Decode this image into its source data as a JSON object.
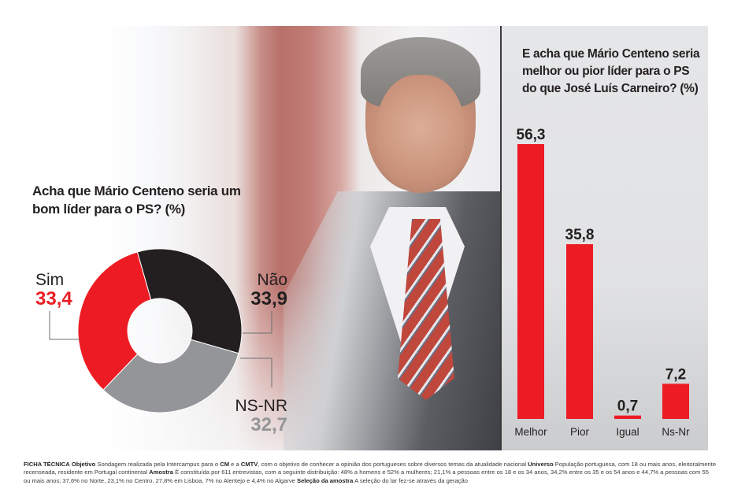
{
  "colors": {
    "red": "#ed1c24",
    "black": "#231f20",
    "gray": "#939598",
    "panel_bg": "#e3e4e6"
  },
  "chart_data": [
    {
      "type": "pie",
      "variant": "donut",
      "title": "Acha que Mário Centeno seria um bom líder para o PS? (%)",
      "categories": [
        "Não",
        "NS-NR",
        "Sim"
      ],
      "values": [
        33.9,
        32.7,
        33.4
      ],
      "value_labels": [
        "33,9",
        "32,7",
        "33,4"
      ],
      "colors": [
        "#231f20",
        "#939598",
        "#ed1c24"
      ],
      "legend": "none",
      "labels_placement": "outside-with-leader-lines"
    },
    {
      "type": "bar",
      "title": "E acha que Mário Centeno seria melhor ou pior líder para o PS do que José Luís Carneiro? (%)",
      "categories": [
        "Melhor",
        "Pior",
        "Igual",
        "Ns-Nr"
      ],
      "values": [
        56.3,
        35.8,
        0.7,
        7.2
      ],
      "value_labels": [
        "56,3",
        "35,8",
        "0,7",
        "7,2"
      ],
      "color": "#ed1c24",
      "xlabel": "",
      "ylabel": "",
      "ylim": [
        0,
        56.3
      ],
      "grid": false
    }
  ],
  "donut": {
    "title": "Acha que Mário Centeno seria um bom líder para o PS? (%)",
    "sim": {
      "name": "Sim",
      "value": "33,4"
    },
    "nao": {
      "name": "Não",
      "value": "33,9"
    },
    "nsnr": {
      "name": "NS-NR",
      "value": "32,7"
    }
  },
  "barchart": {
    "title": "E acha que Mário Centeno seria melhor ou pior líder para o PS do que José Luís Carneiro? (%)"
  },
  "ficha": {
    "label": "FICHA TÉCNICA",
    "objetivo_label": "Objetivo",
    "objetivo_text_1": "Sondagem realizada pela Intercampus para o",
    "cm": "CM",
    "e_a": "e a",
    "cmtv": "CMTV",
    "objetivo_text_2": ", com o objetivo de conhecer a opinião dos portugueses sobre diversos temas da atualidade nacional",
    "universo_label": "Universo",
    "universo_text": "População portuguesa, com 18 ou mais anos, eleitoralmente recenseada, residente em Portugal continental",
    "amostra_label": "Amostra",
    "amostra_text": "É constituída por 611 entrevistas, com a seguinte distribuição: 48% a homens e 52% a mulheres; 21,1% a pessoas entre os 18 e os 34 anos, 34,2% entre os 35 e os 54 anos e 44,7% a pessoas com 55 ou mais anos; 37,6% no Norte, 23,1% no Centro, 27,8% em Lisboa, 7% no Alentejo e 4,4% no Algarve",
    "selecao_label": "Seleção da amostra",
    "selecao_text": "A seleção do lar fez-se através da geração"
  }
}
